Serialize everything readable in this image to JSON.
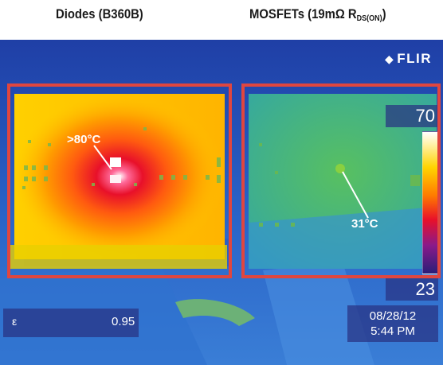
{
  "headings": {
    "left": "Diodes (B360B)",
    "right_main": "MOSFETs (19mΩ R",
    "right_sub": "DS(ON)",
    "right_close": ")"
  },
  "camera": {
    "logo": "FLIR",
    "logo_icon": "flir-mark-icon",
    "scale_max": "70",
    "scale_min": "23",
    "emissivity_symbol": "ε",
    "emissivity_value": "0.95",
    "date": "08/28/12",
    "time": "5:44 PM"
  },
  "annotations": {
    "diode_temp": ">80°C",
    "mosfet_temp": "31°C"
  },
  "colors": {
    "highlight_box": "#e0463f",
    "hot": "#e8102a",
    "warm": "#ffd400",
    "cool": "#2e6fd8"
  }
}
